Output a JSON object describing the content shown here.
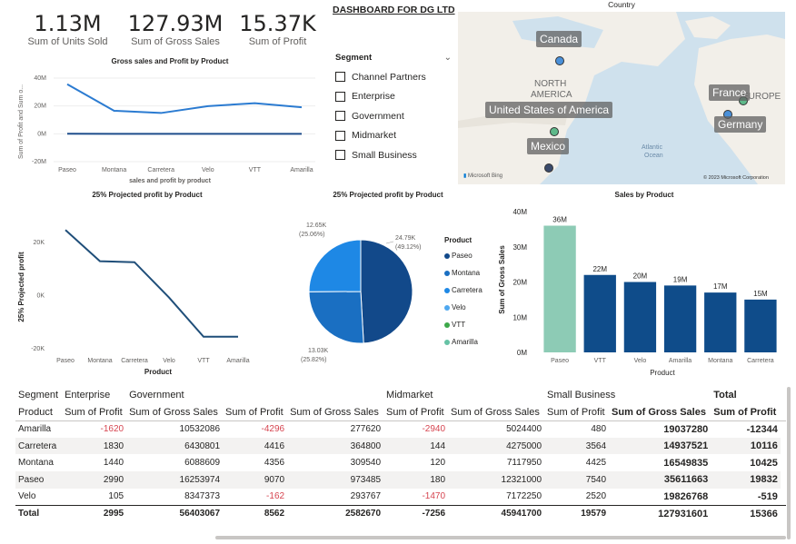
{
  "kpis": [
    {
      "value": "1.13M",
      "label": "Sum of Units Sold"
    },
    {
      "value": "127.93M",
      "label": "Sum of Gross Sales"
    },
    {
      "value": "15.37K",
      "label": "Sum of Profit"
    }
  ],
  "dashboard_title": "DASHBOARD FOR DG LTD",
  "segment_slicer": {
    "title": "Segment",
    "items": [
      "Channel Partners",
      "Enterprise",
      "Government",
      "Midmarket",
      "Small Business"
    ]
  },
  "map": {
    "title": "Country",
    "labels": [
      "Canada",
      "United States of America",
      "Mexico",
      "France",
      "Germany"
    ],
    "region_labels": [
      "NORTH",
      "AMERICA",
      "EUROPE",
      "Atlantic",
      "Ocean"
    ],
    "bing_label": "Microsoft Bing",
    "copyright": "© 2023 Microsoft Corporation",
    "dot_colors": [
      "#4a90d9",
      "#5fb98a",
      "#3a4a6b",
      "#5fb98a",
      "#4a90d9"
    ]
  },
  "chart_data": [
    {
      "type": "line",
      "title": "Gross sales and Profit by Product",
      "xlabel": "sales and profit by product",
      "ylabel": "Sum of Profit and Sum o...",
      "categories": [
        "Paseo",
        "Montana",
        "Carretera",
        "Velo",
        "VTT",
        "Amarilla"
      ],
      "series": [
        {
          "name": "Sum of Gross Sales",
          "values": [
            35611663,
            16549835,
            14937521,
            19826768,
            22000000,
            19037280
          ]
        },
        {
          "name": "Sum of Profit",
          "values": [
            19832,
            10425,
            10116,
            -519,
            0,
            -12344
          ]
        }
      ],
      "yticks": [
        "40M",
        "20M",
        "0M",
        "-20M"
      ],
      "ylim": [
        -20000000,
        40000000
      ],
      "colors": [
        "#2b7bd1",
        "#1f4e8c"
      ]
    },
    {
      "type": "line",
      "title": "25% Projected profit by Product",
      "xlabel": "Product",
      "ylabel": "25% Projected profit",
      "categories": [
        "Paseo",
        "Montana",
        "Carretera",
        "Velo",
        "VTT",
        "Amarilla"
      ],
      "values": [
        24790,
        13030,
        12650,
        -650,
        -15430,
        -15430
      ],
      "yticks": [
        "20K",
        "0K",
        "-20K"
      ],
      "ylim": [
        -20000,
        30000
      ],
      "color": "#1f4e79"
    },
    {
      "type": "pie",
      "title": "25% Projected profit by Product",
      "legend_title": "Product",
      "legend": [
        "Paseo",
        "Montana",
        "Carretera",
        "Velo",
        "VTT",
        "Amarilla"
      ],
      "legend_colors": [
        "#12498a",
        "#1a6fc2",
        "#1e88e5",
        "#4fa8f0",
        "#3da84a",
        "#66c2a5"
      ],
      "slices": [
        {
          "label": "Paseo",
          "value": 24790,
          "pct": "49.12%",
          "color": "#12498a"
        },
        {
          "label": "Montana",
          "value": 13030,
          "pct": "25.82%",
          "color": "#1a6fc2"
        },
        {
          "label": "Carretera",
          "value": 12650,
          "pct": "25.06%",
          "color": "#1e88e5"
        }
      ],
      "data_labels": [
        {
          "value": "24.79K",
          "pct": "(49.12%)"
        },
        {
          "value": "13.03K",
          "pct": "(25.82%)"
        },
        {
          "value": "12.65K",
          "pct": "(25.06%)"
        }
      ]
    },
    {
      "type": "bar",
      "title": "Sales by Product",
      "xlabel": "Product",
      "ylabel": "Sum of Gross Sales",
      "categories": [
        "Paseo",
        "VTT",
        "Velo",
        "Amarilla",
        "Montana",
        "Carretera"
      ],
      "values": [
        36,
        22,
        20,
        19,
        17,
        15
      ],
      "data_labels": [
        "36M",
        "22M",
        "20M",
        "19M",
        "17M",
        "15M"
      ],
      "colors": [
        "#8dcbb5",
        "#0f4c8a",
        "#0f4c8a",
        "#0f4c8a",
        "#0f4c8a",
        "#0f4c8a"
      ],
      "yticks": [
        "40M",
        "30M",
        "20M",
        "10M",
        "0M"
      ],
      "ylim": [
        0,
        40
      ]
    }
  ],
  "matrix": {
    "segment_header": "Segment",
    "product_header": "Product",
    "segments": [
      "Enterprise",
      "Government",
      "Midmarket",
      "Small Business",
      "Total"
    ],
    "measures": [
      "Sum of Profit",
      "Sum of Gross Sales",
      "Sum of Profit",
      "Sum of Gross Sales",
      "Sum of Profit",
      "Sum of Gross Sales",
      "Sum of Profit",
      "Sum of Gross Sales",
      "Sum of Profit"
    ],
    "rows": [
      {
        "product": "Amarilla",
        "cells": [
          "-1620",
          "10532086",
          "-4296",
          "277620",
          "-2940",
          "5024400",
          "480",
          "19037280",
          "-12344"
        ]
      },
      {
        "product": "Carretera",
        "cells": [
          "1830",
          "6430801",
          "4416",
          "364800",
          "144",
          "4275000",
          "3564",
          "14937521",
          "10116"
        ]
      },
      {
        "product": "Montana",
        "cells": [
          "1440",
          "6088609",
          "4356",
          "309540",
          "120",
          "7117950",
          "4425",
          "16549835",
          "10425"
        ]
      },
      {
        "product": "Paseo",
        "cells": [
          "2990",
          "16253974",
          "9070",
          "973485",
          "180",
          "12321000",
          "7540",
          "35611663",
          "19832"
        ]
      },
      {
        "product": "Velo",
        "cells": [
          "105",
          "8347373",
          "-162",
          "293767",
          "-1470",
          "7172250",
          "2520",
          "19826768",
          "-519"
        ]
      }
    ],
    "total": {
      "label": "Total",
      "cells": [
        "2995",
        "56403067",
        "8562",
        "2582670",
        "-7256",
        "45941700",
        "19579",
        "127931601",
        "15366"
      ]
    }
  }
}
